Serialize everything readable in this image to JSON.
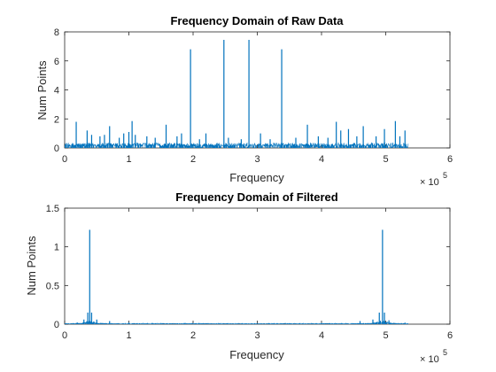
{
  "figure": {
    "background": "#ffffff",
    "axes_color": "#262626",
    "series_color": "#0072BD"
  },
  "chart_data": [
    {
      "type": "line",
      "title": "Frequency Domain of Raw Data",
      "xlabel": "Frequency",
      "ylabel": "Num Points",
      "x_exponent_label": "× 10",
      "x_exponent": "5",
      "xlim": [
        0,
        6
      ],
      "ylim": [
        0,
        8
      ],
      "x_ticks": [
        "0",
        "1",
        "2",
        "3",
        "4",
        "5",
        "6"
      ],
      "y_ticks": [
        "0",
        "2",
        "4",
        "6",
        "8"
      ],
      "x_tick_values": [
        0,
        1,
        2,
        3,
        4,
        5,
        6
      ],
      "y_tick_values": [
        0,
        2,
        4,
        6,
        8
      ],
      "x_units": "× 10^5",
      "x_range_of_data": [
        0,
        5.35
      ],
      "noise_floor": 0.3,
      "peaks": [
        {
          "x": 0.18,
          "y": 1.8
        },
        {
          "x": 0.35,
          "y": 1.2
        },
        {
          "x": 0.42,
          "y": 0.9
        },
        {
          "x": 0.55,
          "y": 0.8
        },
        {
          "x": 0.62,
          "y": 0.9
        },
        {
          "x": 0.7,
          "y": 1.5
        },
        {
          "x": 0.85,
          "y": 0.7
        },
        {
          "x": 0.92,
          "y": 1.0
        },
        {
          "x": 1.0,
          "y": 1.1
        },
        {
          "x": 1.05,
          "y": 1.85
        },
        {
          "x": 1.1,
          "y": 0.9
        },
        {
          "x": 1.28,
          "y": 0.8
        },
        {
          "x": 1.41,
          "y": 0.7
        },
        {
          "x": 1.58,
          "y": 1.6
        },
        {
          "x": 1.75,
          "y": 0.8
        },
        {
          "x": 1.82,
          "y": 1.0
        },
        {
          "x": 1.96,
          "y": 6.8
        },
        {
          "x": 2.1,
          "y": 0.6
        },
        {
          "x": 2.2,
          "y": 1.0
        },
        {
          "x": 2.48,
          "y": 7.45
        },
        {
          "x": 2.55,
          "y": 0.7
        },
        {
          "x": 2.75,
          "y": 0.6
        },
        {
          "x": 2.87,
          "y": 7.45
        },
        {
          "x": 3.05,
          "y": 1.0
        },
        {
          "x": 3.2,
          "y": 0.6
        },
        {
          "x": 3.38,
          "y": 6.8
        },
        {
          "x": 3.6,
          "y": 0.7
        },
        {
          "x": 3.78,
          "y": 1.6
        },
        {
          "x": 3.95,
          "y": 0.8
        },
        {
          "x": 4.1,
          "y": 0.7
        },
        {
          "x": 4.23,
          "y": 1.8
        },
        {
          "x": 4.3,
          "y": 1.2
        },
        {
          "x": 4.42,
          "y": 1.3
        },
        {
          "x": 4.55,
          "y": 0.8
        },
        {
          "x": 4.65,
          "y": 1.5
        },
        {
          "x": 4.85,
          "y": 0.8
        },
        {
          "x": 4.98,
          "y": 1.3
        },
        {
          "x": 5.15,
          "y": 1.85
        },
        {
          "x": 5.22,
          "y": 0.8
        },
        {
          "x": 5.3,
          "y": 1.2
        }
      ]
    },
    {
      "type": "line",
      "title": "Frequency Domain of Filtered",
      "xlabel": "Frequency",
      "ylabel": "Num Points",
      "x_exponent_label": "× 10",
      "x_exponent": "5",
      "xlim": [
        0,
        6
      ],
      "ylim": [
        0,
        1.5
      ],
      "x_ticks": [
        "0",
        "1",
        "2",
        "3",
        "4",
        "5",
        "6"
      ],
      "y_ticks": [
        "0",
        "0.5",
        "1",
        "1.5"
      ],
      "x_tick_values": [
        0,
        1,
        2,
        3,
        4,
        5,
        6
      ],
      "y_tick_values": [
        0,
        0.5,
        1,
        1.5
      ],
      "x_units": "× 10^5",
      "x_range_of_data": [
        0,
        5.35
      ],
      "noise_floor": 0.01,
      "peaks": [
        {
          "x": 0.2,
          "y": 0.02
        },
        {
          "x": 0.3,
          "y": 0.06
        },
        {
          "x": 0.36,
          "y": 0.15
        },
        {
          "x": 0.39,
          "y": 1.22
        },
        {
          "x": 0.42,
          "y": 0.15
        },
        {
          "x": 0.5,
          "y": 0.06
        },
        {
          "x": 0.7,
          "y": 0.04
        },
        {
          "x": 1.0,
          "y": 0.02
        },
        {
          "x": 1.5,
          "y": 0.015
        },
        {
          "x": 4.0,
          "y": 0.015
        },
        {
          "x": 4.6,
          "y": 0.04
        },
        {
          "x": 4.8,
          "y": 0.06
        },
        {
          "x": 4.9,
          "y": 0.15
        },
        {
          "x": 4.95,
          "y": 1.22
        },
        {
          "x": 4.98,
          "y": 0.15
        },
        {
          "x": 5.05,
          "y": 0.05
        },
        {
          "x": 5.3,
          "y": 0.02
        }
      ]
    }
  ]
}
